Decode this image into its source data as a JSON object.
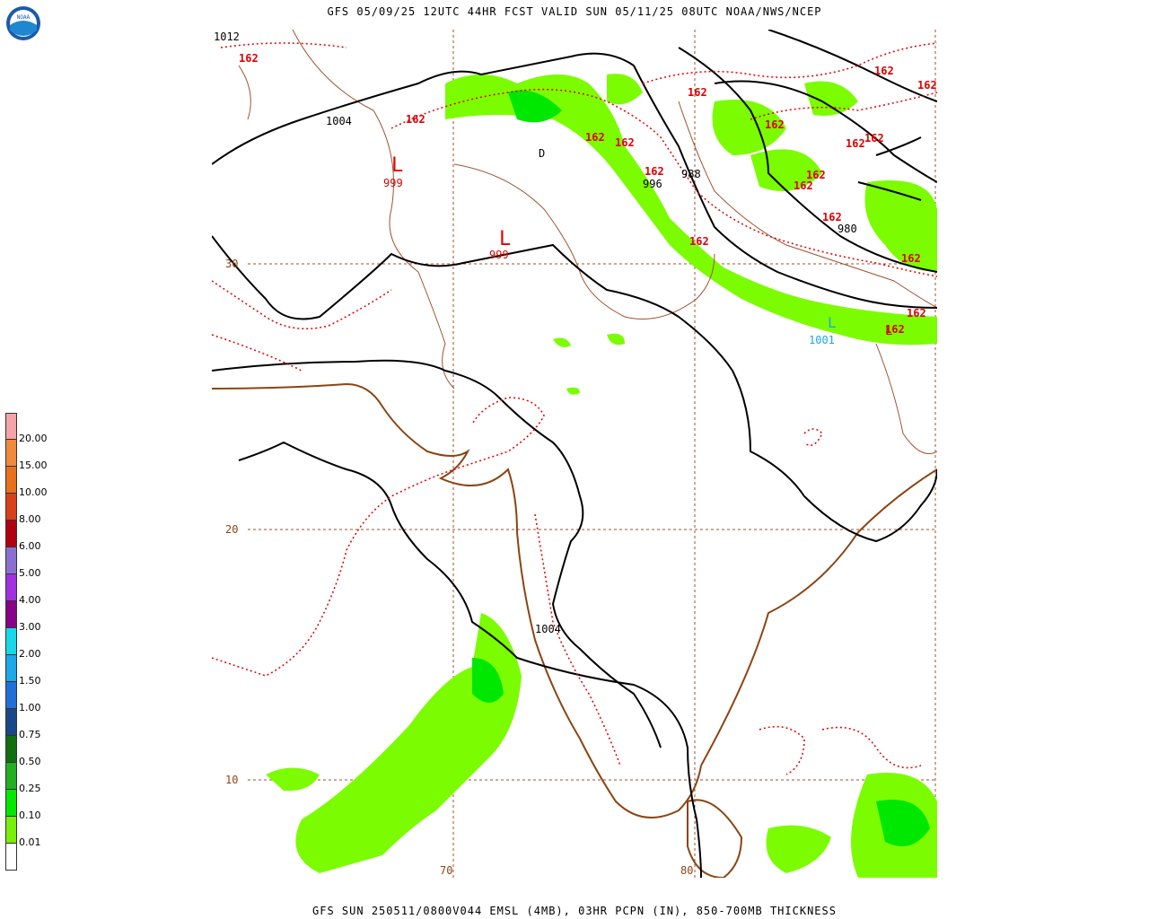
{
  "header": {
    "title": "GFS 05/09/25 12UTC 44HR FCST VALID SUN 05/11/25 08UTC NOAA/NWS/NCEP"
  },
  "footer": {
    "caption": "GFS SUN 250511/0800V044 EMSL (4MB), 03HR PCPN (IN), 850-700MB THICKNESS"
  },
  "logo": {
    "text": "NOAA"
  },
  "legend": {
    "items": [
      {
        "label": "20.00",
        "color": "#f4a3a8"
      },
      {
        "label": "15.00",
        "color": "#f08a3c"
      },
      {
        "label": "10.00",
        "color": "#e8701a"
      },
      {
        "label": "8.00",
        "color": "#d8401a"
      },
      {
        "label": "6.00",
        "color": "#b00010"
      },
      {
        "label": "5.00",
        "color": "#8c70d0"
      },
      {
        "label": "4.00",
        "color": "#a030e0"
      },
      {
        "label": "3.00",
        "color": "#880088"
      },
      {
        "label": "2.00",
        "color": "#18d8e8"
      },
      {
        "label": "1.50",
        "color": "#1aa8e8"
      },
      {
        "label": "1.00",
        "color": "#2070d8"
      },
      {
        "label": "0.75",
        "color": "#184888"
      },
      {
        "label": "0.50",
        "color": "#107010"
      },
      {
        "label": "0.25",
        "color": "#20b020"
      },
      {
        "label": "0.10",
        "color": "#00e800"
      },
      {
        "label": "0.01",
        "color": "#78f00a"
      },
      {
        "label": "",
        "color": "#ffffff"
      }
    ]
  },
  "map": {
    "lat_labels": [
      "30",
      "20",
      "10"
    ],
    "lon_labels": [
      "70",
      "80"
    ],
    "isobar_labels": [
      "1012",
      "1004",
      "1004",
      "996",
      "988",
      "980",
      "1001"
    ],
    "pressure_centers": [
      {
        "symbol": "L",
        "value": "999"
      },
      {
        "symbol": "L",
        "value": "999"
      },
      {
        "symbol": "L",
        "value": ""
      },
      {
        "symbol": "L",
        "value": "1001"
      }
    ],
    "marker_D": "D",
    "thickness_label": "162",
    "colors": {
      "isobar": "#000000",
      "thickness": "#e00000",
      "coast": "#8b4513",
      "grid": "#a0522d",
      "precip": "#7cfc00",
      "precip_heavy": "#00e800"
    }
  }
}
